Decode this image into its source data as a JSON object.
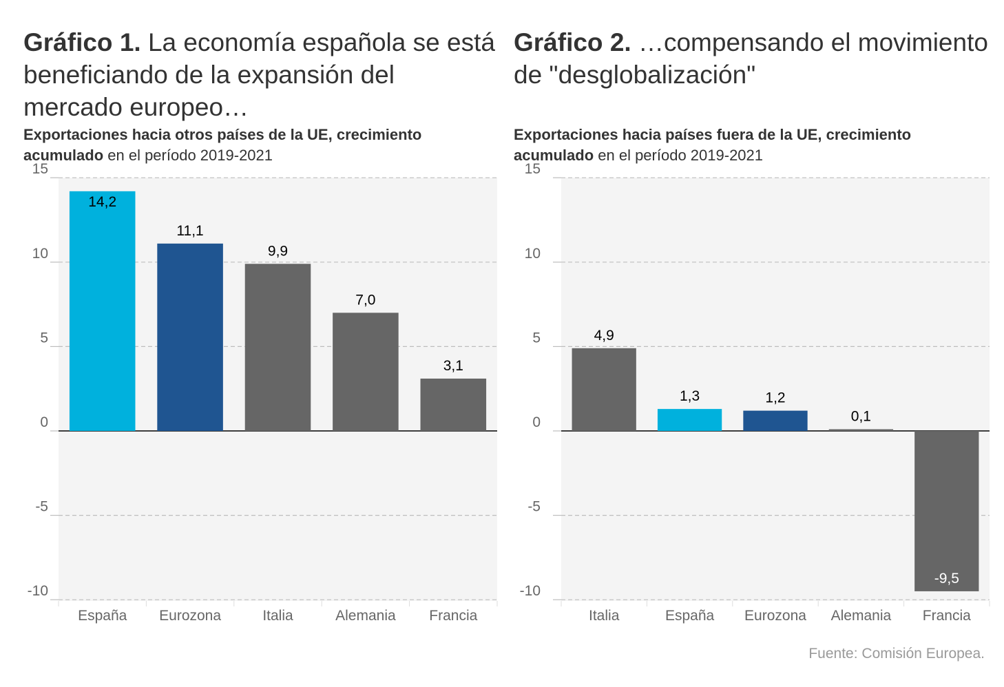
{
  "chart_data": [
    {
      "type": "bar",
      "title_bold": "Gráfico 1.",
      "title_rest": " La economía española se está beneficiando de la expansión del mercado europeo…",
      "subtitle_bold": "Exportaciones hacia otros países de la UE, crecimiento acumulado",
      "subtitle_rest": " en el período 2019-2021",
      "categories": [
        "España",
        "Eurozona",
        "Italia",
        "Alemania",
        "Francia"
      ],
      "values": [
        14.2,
        11.1,
        9.9,
        7.0,
        3.1
      ],
      "value_labels": [
        "14,2",
        "11,1",
        "9,9",
        "7,0",
        "3,1"
      ],
      "colors": [
        "#00b1dd",
        "#1f5591",
        "#666666",
        "#666666",
        "#666666"
      ],
      "ylim": [
        -10,
        15
      ],
      "yticks": [
        -10,
        -5,
        0,
        5,
        10,
        15
      ],
      "grid": true
    },
    {
      "type": "bar",
      "title_bold": "Gráfico 2.",
      "title_rest": " …compensando el movimiento de \"desglobalización\"",
      "subtitle_bold": "Exportaciones hacia países fuera de la UE, crecimiento acumulado",
      "subtitle_rest": " en el período 2019-2021",
      "categories": [
        "Italia",
        "España",
        "Eurozona",
        "Alemania",
        "Francia"
      ],
      "values": [
        4.9,
        1.3,
        1.2,
        0.1,
        -9.5
      ],
      "value_labels": [
        "4,9",
        "1,3",
        "1,2",
        "0,1",
        "-9,5"
      ],
      "colors": [
        "#666666",
        "#00b1dd",
        "#1f5591",
        "#666666",
        "#666666"
      ],
      "ylim": [
        -10,
        15
      ],
      "yticks": [
        -10,
        -5,
        0,
        5,
        10,
        15
      ],
      "grid": true
    }
  ],
  "source": "Fuente: Comisión Europea."
}
